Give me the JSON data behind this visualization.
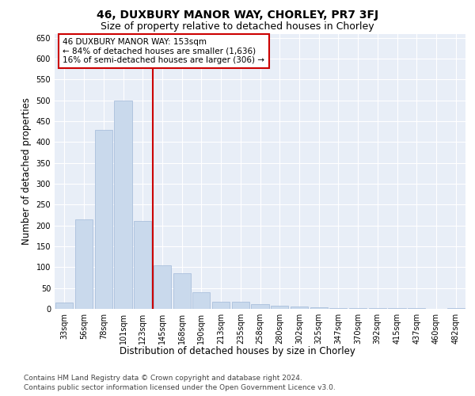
{
  "title": "46, DUXBURY MANOR WAY, CHORLEY, PR7 3FJ",
  "subtitle": "Size of property relative to detached houses in Chorley",
  "xlabel": "Distribution of detached houses by size in Chorley",
  "ylabel": "Number of detached properties",
  "categories": [
    "33sqm",
    "56sqm",
    "78sqm",
    "101sqm",
    "123sqm",
    "145sqm",
    "168sqm",
    "190sqm",
    "213sqm",
    "235sqm",
    "258sqm",
    "280sqm",
    "302sqm",
    "325sqm",
    "347sqm",
    "370sqm",
    "392sqm",
    "415sqm",
    "437sqm",
    "460sqm",
    "482sqm"
  ],
  "values": [
    15,
    215,
    430,
    500,
    210,
    105,
    85,
    40,
    18,
    18,
    12,
    8,
    5,
    3,
    2,
    1,
    1,
    1,
    1,
    0,
    1
  ],
  "bar_color": "#c9d9ec",
  "bar_edge_color": "#a0b8d8",
  "red_line_x": 4.5,
  "annotation_text": "46 DUXBURY MANOR WAY: 153sqm\n← 84% of detached houses are smaller (1,636)\n16% of semi-detached houses are larger (306) →",
  "annotation_box_color": "#ffffff",
  "annotation_border_color": "#cc0000",
  "ylim": [
    0,
    660
  ],
  "yticks": [
    0,
    50,
    100,
    150,
    200,
    250,
    300,
    350,
    400,
    450,
    500,
    550,
    600,
    650
  ],
  "plot_bg_color": "#e8eef7",
  "footer_line1": "Contains HM Land Registry data © Crown copyright and database right 2024.",
  "footer_line2": "Contains public sector information licensed under the Open Government Licence v3.0.",
  "title_fontsize": 10,
  "subtitle_fontsize": 9,
  "axis_label_fontsize": 8.5,
  "tick_fontsize": 7,
  "annotation_fontsize": 7.5,
  "footer_fontsize": 6.5
}
